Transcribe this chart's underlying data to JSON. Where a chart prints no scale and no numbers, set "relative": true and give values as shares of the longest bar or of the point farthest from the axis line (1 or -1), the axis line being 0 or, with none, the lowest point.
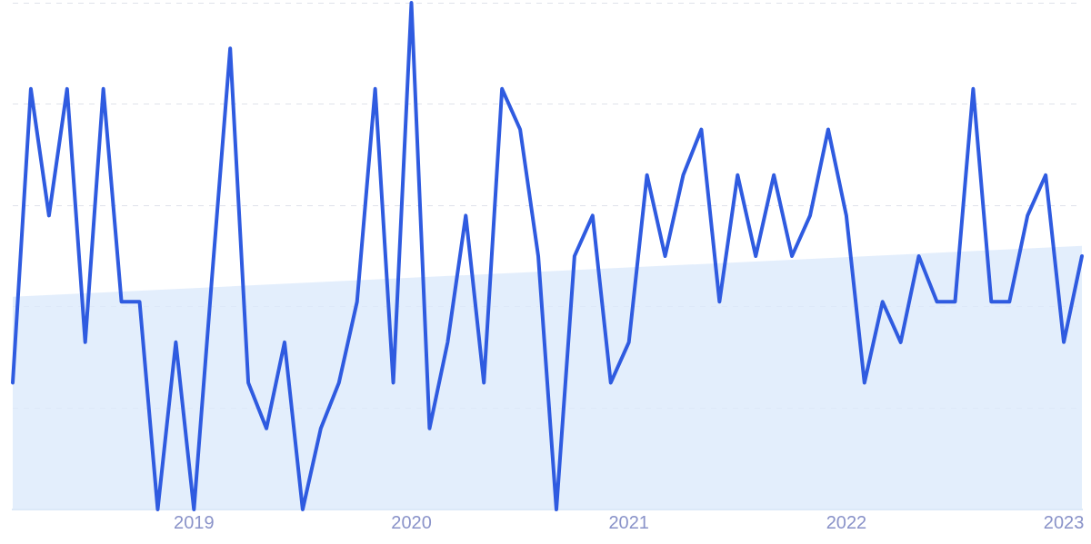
{
  "chart_data": {
    "type": "line",
    "relative": true,
    "grid": "y",
    "line_style": "solid",
    "marker": "none",
    "xlim": [
      "2018-03",
      "2023-02"
    ],
    "xticks": [
      "2019",
      "2020",
      "2021",
      "2022",
      "2023"
    ],
    "series": [
      {
        "color": "#2f5be0",
        "x": [
          "2018-03",
          "2018-04",
          "2018-05",
          "2018-06",
          "2018-07",
          "2018-08",
          "2018-09",
          "2018-10",
          "2018-11",
          "2018-12",
          "2019-01",
          "2019-02",
          "2019-03",
          "2019-04",
          "2019-05",
          "2019-06",
          "2019-07",
          "2019-08",
          "2019-09",
          "2019-10",
          "2019-11",
          "2019-12",
          "2020-01",
          "2020-02",
          "2020-03",
          "2020-04",
          "2020-05",
          "2020-06",
          "2020-07",
          "2020-08",
          "2020-09",
          "2020-10",
          "2020-11",
          "2020-12",
          "2021-01",
          "2021-02",
          "2021-03",
          "2021-04",
          "2021-05",
          "2021-06",
          "2021-07",
          "2021-08",
          "2021-09",
          "2021-10",
          "2021-11",
          "2021-12",
          "2022-01",
          "2022-02",
          "2022-03",
          "2022-04",
          "2022-05",
          "2022-06",
          "2022-07",
          "2022-08",
          "2022-09",
          "2022-10",
          "2022-11",
          "2022-12",
          "2023-01",
          "2023-02"
        ],
        "values": [
          0.25,
          0.83,
          0.58,
          0.83,
          0.33,
          0.83,
          0.41,
          0.41,
          0,
          0.33,
          0,
          0.46,
          0.91,
          0.25,
          0.16,
          0.33,
          0,
          0.16,
          0.25,
          0.41,
          0.83,
          0.25,
          1,
          0.16,
          0.33,
          0.58,
          0.25,
          0.83,
          0.75,
          0.5,
          0,
          0.5,
          0.58,
          0.25,
          0.33,
          0.66,
          0.5,
          0.66,
          0.75,
          0.41,
          0.66,
          0.5,
          0.66,
          0.5,
          0.58,
          0.75,
          0.58,
          0.25,
          0.41,
          0.33,
          0.5,
          0.41,
          0.41,
          0.83,
          0.41,
          0.41,
          0.58,
          0.66,
          0.33,
          0.5
        ]
      },
      {
        "type": "area",
        "color": "#dceafb",
        "x": [
          "2018-03",
          "2023-02"
        ],
        "values": [
          0.42,
          0.52
        ]
      }
    ]
  }
}
